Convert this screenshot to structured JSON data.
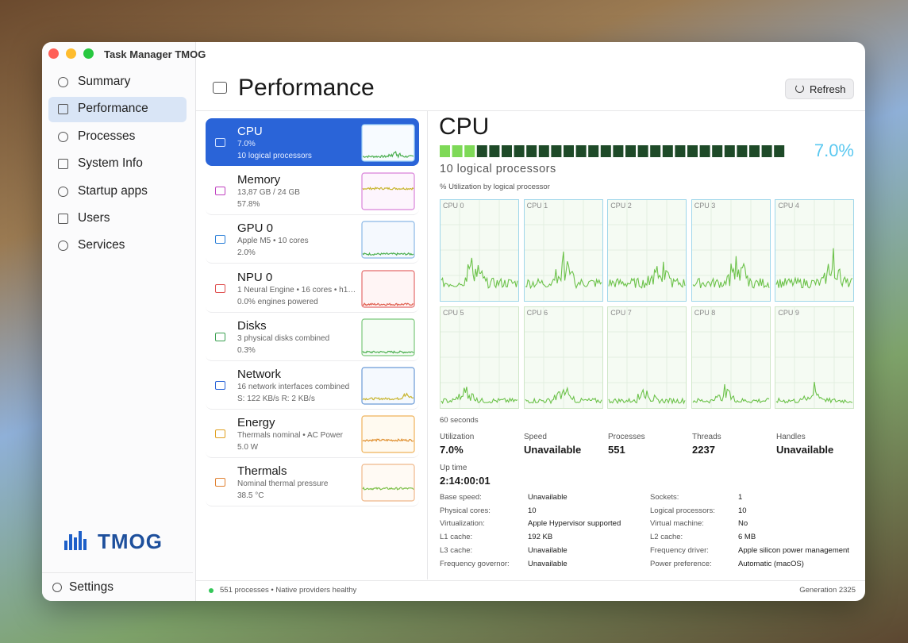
{
  "window": {
    "title": "Task Manager TMOG"
  },
  "sidebar": {
    "items": [
      "Summary",
      "Performance",
      "Processes",
      "System Info",
      "Startup apps",
      "Users",
      "Services"
    ],
    "selected": "Performance",
    "logo": "TMOG",
    "settings": "Settings"
  },
  "header": {
    "title": "Performance",
    "refresh": "Refresh"
  },
  "devices": [
    {
      "name": "CPU",
      "lines": [
        "7.0%",
        "10 logical processors"
      ]
    },
    {
      "name": "Memory",
      "lines": [
        "13,87 GB / 24 GB",
        "57.8%"
      ]
    },
    {
      "name": "GPU 0",
      "lines": [
        "Apple M5 • 10 cores",
        "2.0%"
      ]
    },
    {
      "name": "NPU 0",
      "lines": [
        "1 Neural Engine • 16 cores • h1…",
        "0.0% engines powered"
      ]
    },
    {
      "name": "Disks",
      "lines": [
        "3 physical disks combined",
        "0.3%"
      ]
    },
    {
      "name": "Network",
      "lines": [
        "16 network interfaces combined",
        "S: 122 KB/s  R: 2 KB/s"
      ]
    },
    {
      "name": "Energy",
      "lines": [
        "Thermals nominal • AC Power",
        "5.0 W"
      ]
    },
    {
      "name": "Thermals",
      "lines": [
        "Nominal thermal pressure",
        "38.5 °C"
      ]
    }
  ],
  "detail": {
    "title": "CPU",
    "percent": "7.0%",
    "subtitle": "10 logical processors",
    "chart_caption": "% Utilization by logical processor",
    "cores": [
      "CPU 0",
      "CPU 1",
      "CPU 2",
      "CPU 3",
      "CPU 4",
      "CPU 5",
      "CPU 6",
      "CPU 7",
      "CPU 8",
      "CPU 9"
    ],
    "time_label": "60 seconds",
    "stats": [
      {
        "label": "Utilization",
        "value": "7.0%"
      },
      {
        "label": "Speed",
        "value": "Unavailable"
      },
      {
        "label": "Processes",
        "value": "551"
      },
      {
        "label": "Threads",
        "value": "2237"
      },
      {
        "label": "Handles",
        "value": "Unavailable"
      }
    ],
    "uptime": {
      "label": "Up time",
      "value": "2:14:00:01"
    },
    "specs": [
      [
        "Base speed:",
        "Unavailable",
        "Sockets:",
        "1"
      ],
      [
        "Physical cores:",
        "10",
        "Logical processors:",
        "10"
      ],
      [
        "Virtualization:",
        "Apple Hypervisor supported",
        "Virtual machine:",
        "No"
      ],
      [
        "L1 cache:",
        "192 KB",
        "L2 cache:",
        "6 MB"
      ],
      [
        "L3 cache:",
        "Unavailable",
        "Frequency driver:",
        "Apple silicon power management"
      ],
      [
        "Frequency governor:",
        "Unavailable",
        "Power preference:",
        "Automatic (macOS)"
      ]
    ]
  },
  "status": {
    "left": "551 processes • Native providers healthy",
    "right": "Generation 2325"
  }
}
